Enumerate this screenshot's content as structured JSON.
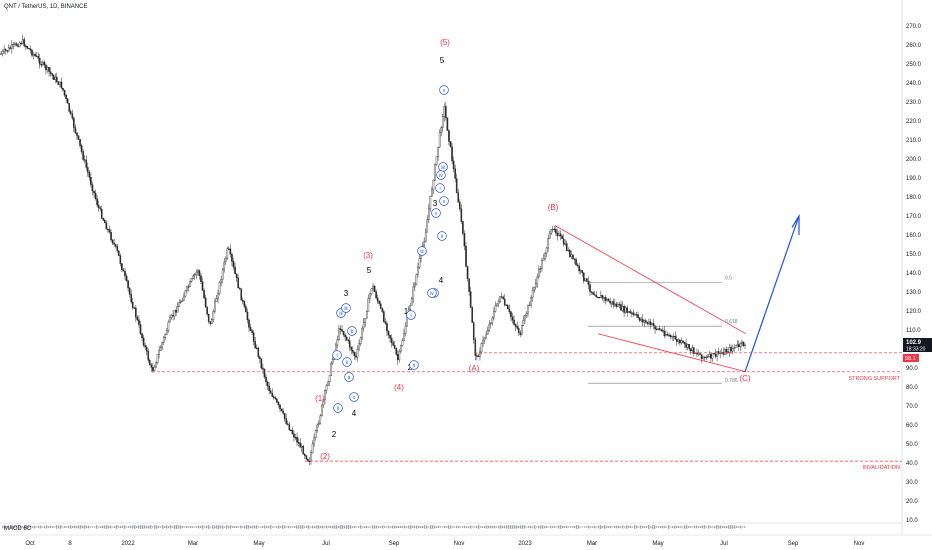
{
  "header": {
    "symbol": "QNT / TetherUS, 1D, BINANCE"
  },
  "indicator_label": "MACD 6C",
  "price_tags": {
    "last_price": "102.9",
    "countdown": "18:33:20",
    "support_price": "98.1"
  },
  "colors": {
    "candle": "#2a2a2a",
    "red": "#f23645",
    "blue": "#1e53e5",
    "grid": "#e6e6e6",
    "gray_line": "#787b86"
  },
  "chart_data": {
    "type": "candlestick",
    "title": "QNT / TetherUS, 1D, BINANCE",
    "ylim": [
      10,
      278
    ],
    "y_ticks": [
      10.0,
      20.0,
      30.0,
      40.0,
      50.0,
      60.0,
      70.0,
      80.0,
      90.0,
      100.0,
      110.0,
      120.0,
      130.0,
      140.0,
      150.0,
      160.0,
      170.0,
      180.0,
      190.0,
      200.0,
      210.0,
      220.0,
      230.0,
      240.0,
      250.0,
      260.0,
      270.0
    ],
    "x_ticks": [
      "Oct",
      "8",
      "2022",
      "Mar",
      "May",
      "Jul",
      "Sep",
      "Nov",
      "2023",
      "Mar",
      "May",
      "Jul",
      "Sep",
      "Nov"
    ],
    "price_path": [
      {
        "x": "Oct",
        "y": 255
      },
      {
        "x": "8",
        "y": 262
      },
      {
        "x": "8",
        "y": 238
      },
      {
        "x": "2022",
        "y": 175
      },
      {
        "x": "2022",
        "y": 150
      },
      {
        "x": "2022",
        "y": 88
      },
      {
        "x": "2022",
        "y": 115
      },
      {
        "x": "2022",
        "y": 142
      },
      {
        "x": "Mar",
        "y": 112
      },
      {
        "x": "Mar",
        "y": 140
      },
      {
        "x": "Mar",
        "y": 153
      },
      {
        "x": "May",
        "y": 118
      },
      {
        "x": "May",
        "y": 80
      },
      {
        "x": "May",
        "y": 58
      },
      {
        "x": "Jul",
        "y": 41
      },
      {
        "x": "Jul",
        "y": 65
      },
      {
        "x": "Jul",
        "y": 112
      },
      {
        "x": "Jul",
        "y": 95
      },
      {
        "x": "Sep",
        "y": 134
      },
      {
        "x": "Sep",
        "y": 94
      },
      {
        "x": "Sep",
        "y": 160
      },
      {
        "x": "Sep",
        "y": 228
      },
      {
        "x": "Nov",
        "y": 165
      },
      {
        "x": "Nov",
        "y": 94
      },
      {
        "x": "Nov",
        "y": 128
      },
      {
        "x": "2023",
        "y": 108
      },
      {
        "x": "2023",
        "y": 165
      },
      {
        "x": "Mar",
        "y": 130
      },
      {
        "x": "May",
        "y": 110
      },
      {
        "x": "Jul",
        "y": 95
      },
      {
        "x": "Jul",
        "y": 102.9
      }
    ],
    "horizontal_levels": [
      {
        "name": "STRONG SUPPORT",
        "price": 88
      },
      {
        "name": "INVALIDATION",
        "price": 41
      },
      {
        "name": "0.5",
        "price": 135
      },
      {
        "name": "0.618",
        "price": 112
      },
      {
        "name": "0.786",
        "price": 82
      }
    ],
    "wave_labels": {
      "red": [
        "(5)",
        "(3)",
        "(1)",
        "(2)",
        "(4)",
        "(A)",
        "(B)",
        "(C)"
      ],
      "black": [
        "5",
        "3",
        "5",
        "3",
        "2",
        "4",
        "1",
        "2",
        "4"
      ],
      "blue_circled": [
        "v",
        "iii",
        "iv",
        "ii",
        "i",
        "a",
        "b",
        "c",
        "i",
        "ii",
        "iii",
        "iv",
        "v",
        "i",
        "ii",
        "iii",
        "iv",
        "v",
        "iii",
        "ii"
      ]
    },
    "projection": {
      "from": 88,
      "to": 170
    }
  }
}
